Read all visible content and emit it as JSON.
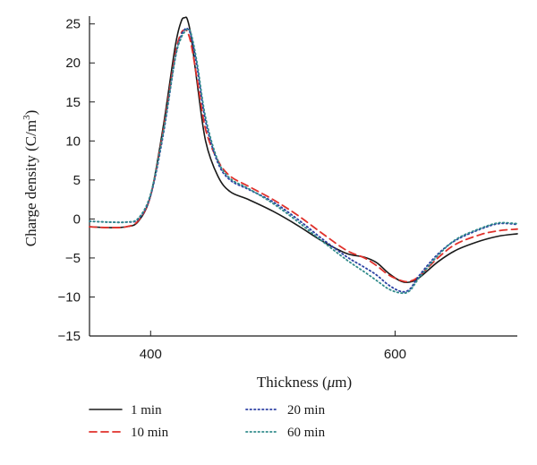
{
  "chart_data": {
    "type": "line",
    "title": "",
    "xlabel": "Thickness (μm)",
    "xlabel_parts": {
      "pre": "Thickness (",
      "greek": "μ",
      "post": "m)"
    },
    "ylabel": "Charge density (C/m3)",
    "ylabel_parts": {
      "pre": "Charge density (C/m",
      "sup": "3",
      "post": ")"
    },
    "xlim": [
      350,
      700
    ],
    "ylim": [
      -15,
      26
    ],
    "xticks": [
      400,
      600
    ],
    "yticks": [
      -15,
      -10,
      -5,
      0,
      5,
      10,
      15,
      20,
      25
    ],
    "grid": false,
    "legend_position": "bottom",
    "series": [
      {
        "name": "1 min",
        "color": "#1a1a1a",
        "style": "solid",
        "x": [
          350,
          365,
          380,
          390,
          400,
          410,
          420,
          425,
          428,
          430,
          433,
          438,
          445,
          455,
          465,
          480,
          500,
          520,
          540,
          560,
          575,
          585,
          595,
          605,
          612,
          620,
          635,
          650,
          670,
          685,
          700
        ],
        "y": [
          -1.0,
          -1.1,
          -1.0,
          -0.3,
          3.0,
          11.5,
          22.0,
          25.3,
          25.8,
          25.6,
          23.5,
          17.5,
          10.0,
          5.5,
          3.5,
          2.5,
          1.0,
          -0.8,
          -2.8,
          -4.4,
          -4.9,
          -5.6,
          -7.0,
          -8.0,
          -8.1,
          -7.5,
          -5.5,
          -4.0,
          -2.8,
          -2.2,
          -1.9
        ]
      },
      {
        "name": "10 min",
        "color": "#e0312b",
        "style": "dashed",
        "x": [
          350,
          365,
          380,
          390,
          400,
          410,
          420,
          425,
          428,
          430,
          433,
          438,
          445,
          455,
          465,
          480,
          500,
          520,
          540,
          560,
          575,
          585,
          595,
          605,
          612,
          620,
          635,
          650,
          670,
          685,
          700
        ],
        "y": [
          -1.0,
          -1.1,
          -1.0,
          -0.2,
          3.0,
          11.0,
          21.0,
          23.8,
          24.2,
          24.0,
          22.5,
          18.0,
          11.5,
          7.5,
          5.5,
          4.2,
          2.5,
          0.5,
          -1.8,
          -4.0,
          -5.0,
          -6.0,
          -7.2,
          -7.9,
          -8.0,
          -7.3,
          -5.0,
          -3.2,
          -2.0,
          -1.5,
          -1.3
        ]
      },
      {
        "name": "20 min",
        "color": "#2b3fa3",
        "style": "dotted",
        "x": [
          350,
          365,
          380,
          390,
          400,
          410,
          420,
          425,
          428,
          430,
          433,
          438,
          445,
          455,
          465,
          480,
          500,
          520,
          540,
          560,
          575,
          585,
          595,
          605,
          612,
          620,
          635,
          650,
          670,
          685,
          700
        ],
        "y": [
          -0.3,
          -0.4,
          -0.4,
          0.0,
          3.0,
          10.5,
          20.5,
          23.5,
          24.3,
          24.4,
          23.5,
          19.5,
          12.5,
          7.2,
          5.0,
          3.8,
          2.2,
          0.0,
          -2.5,
          -4.8,
          -6.2,
          -7.2,
          -8.5,
          -9.3,
          -9.0,
          -7.2,
          -4.5,
          -2.7,
          -1.3,
          -0.6,
          -0.7
        ]
      },
      {
        "name": "60 min",
        "color": "#2f8a8a",
        "style": "dotted",
        "x": [
          350,
          365,
          380,
          390,
          400,
          410,
          420,
          425,
          428,
          430,
          433,
          438,
          445,
          455,
          465,
          480,
          500,
          520,
          540,
          560,
          575,
          585,
          595,
          605,
          612,
          620,
          635,
          650,
          670,
          685,
          700
        ],
        "y": [
          -0.3,
          -0.4,
          -0.4,
          0.1,
          3.2,
          10.8,
          20.5,
          23.2,
          24.0,
          24.3,
          23.8,
          20.0,
          13.0,
          7.5,
          5.2,
          3.9,
          2.0,
          -0.3,
          -2.8,
          -5.2,
          -6.8,
          -7.9,
          -9.0,
          -9.5,
          -9.2,
          -7.5,
          -4.7,
          -2.6,
          -1.2,
          -0.5,
          -0.6
        ]
      }
    ]
  }
}
